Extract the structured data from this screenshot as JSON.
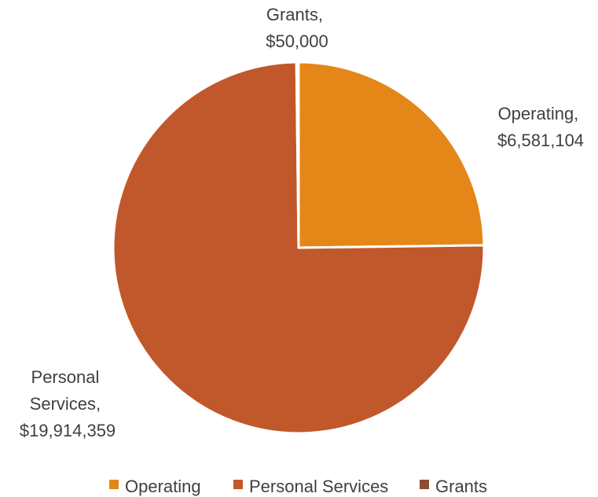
{
  "chart_data": {
    "type": "pie",
    "categories": [
      "Operating",
      "Personal Services",
      "Grants"
    ],
    "values": [
      6581104,
      19914359,
      50000
    ],
    "data_labels": [
      [
        "Operating,",
        "$6,581,104"
      ],
      [
        "Personal",
        "Services,",
        "$19,914,359"
      ],
      [
        "Grants,",
        "$50,000"
      ]
    ],
    "colors": [
      "#E48618",
      "#C0582B",
      "#8C4D31"
    ],
    "legend": {
      "position": "bottom",
      "entries": [
        "Operating",
        "Personal Services",
        "Grants"
      ]
    }
  }
}
